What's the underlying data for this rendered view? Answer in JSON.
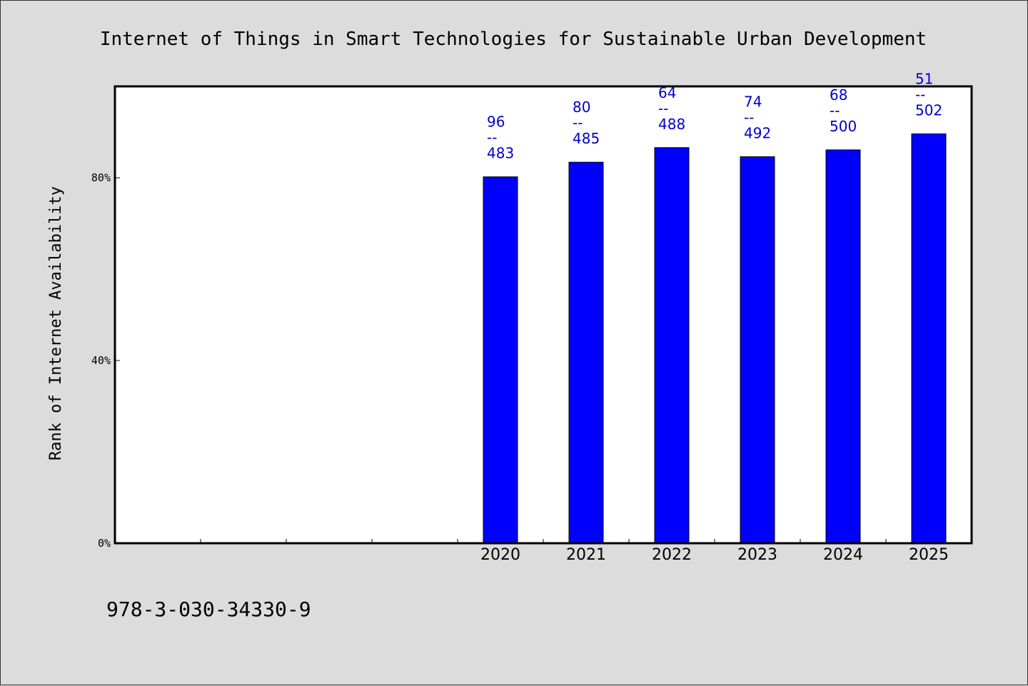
{
  "chart_data": {
    "type": "bar",
    "title": "Internet of Things in Smart Technologies for Sustainable Urban Development",
    "ylabel": "Rank of Internet Availability",
    "xlabel": "",
    "categories": [
      "",
      "",
      "",
      "",
      "2020",
      "2021",
      "2022",
      "2023",
      "2024",
      "2025"
    ],
    "values": [
      null,
      null,
      null,
      null,
      80.2,
      83.4,
      86.6,
      84.6,
      86.1,
      89.6
    ],
    "bar_labels": [
      null,
      null,
      null,
      null,
      {
        "top": "96",
        "mid": "--",
        "bottom": "483"
      },
      {
        "top": "80",
        "mid": "--",
        "bottom": "485"
      },
      {
        "top": "64",
        "mid": "--",
        "bottom": "488"
      },
      {
        "top": "74",
        "mid": "--",
        "bottom": "492"
      },
      {
        "top": "68",
        "mid": "--",
        "bottom": "500"
      },
      {
        "top": "51",
        "mid": "--",
        "bottom": "502"
      }
    ],
    "yticks": [
      {
        "value": 0,
        "label": "0%"
      },
      {
        "value": 40,
        "label": "40%"
      },
      {
        "value": 80,
        "label": "80%"
      }
    ],
    "ylim": [
      0,
      100
    ],
    "grid": false,
    "colors": {
      "bar": "#0000ff",
      "bar_label": "#0000cc",
      "background": "#dcdcdc",
      "plot_bg": "#ffffff"
    }
  },
  "footer": {
    "isbn": "978-3-030-34330-9"
  }
}
